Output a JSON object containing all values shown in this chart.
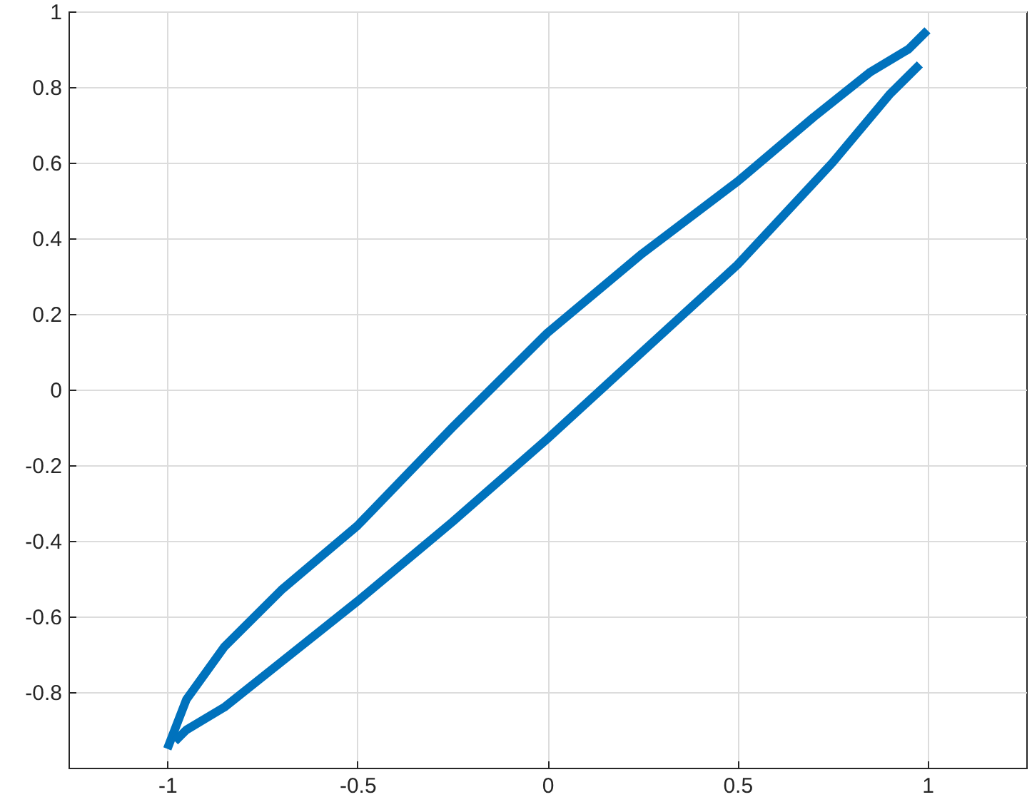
{
  "chart_data": {
    "type": "line",
    "xlim": [
      -1.26,
      1.26
    ],
    "ylim": [
      -1,
      1
    ],
    "xticks": [
      -1,
      -0.5,
      0,
      0.5,
      1
    ],
    "yticks": [
      -0.8,
      -0.6,
      -0.4,
      -0.2,
      0,
      0.2,
      0.4,
      0.6,
      0.8,
      1
    ],
    "grid": true,
    "marker": "none",
    "line_style": "solid",
    "series": [
      {
        "color": "#0072bd",
        "x": [
          -1,
          -0.95,
          -0.85,
          -0.7,
          -0.5,
          -0.25,
          0,
          0.25,
          0.5,
          0.7,
          0.85,
          0.95,
          1
        ],
        "values": [
          -0.95,
          -0.82,
          -0.68,
          -0.53,
          -0.36,
          -0.1,
          0.15,
          0.36,
          0.55,
          0.72,
          0.84,
          0.9,
          0.95
        ]
      },
      {
        "color": "#0072bd",
        "x": [
          -0.98,
          -0.95,
          -0.85,
          -0.7,
          -0.5,
          -0.25,
          0,
          0.25,
          0.5,
          0.75,
          0.9,
          0.98
        ],
        "values": [
          -0.93,
          -0.9,
          -0.84,
          -0.72,
          -0.56,
          -0.35,
          -0.13,
          0.1,
          0.33,
          0.6,
          0.78,
          0.86
        ]
      }
    ]
  }
}
